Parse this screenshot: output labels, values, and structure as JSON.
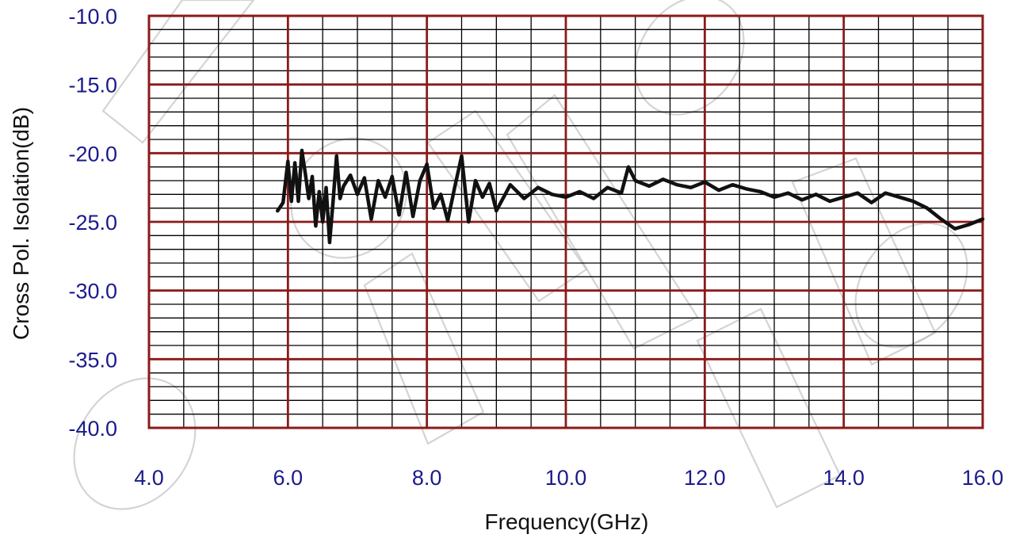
{
  "chart_data": {
    "type": "line",
    "title": "",
    "xlabel": "Frequency(GHz)",
    "ylabel": "Cross Pol. Isolation(dB)",
    "xlim": [
      4.0,
      16.0
    ],
    "ylim": [
      -40.0,
      -10.0
    ],
    "x_ticks": [
      "4.0",
      "6.0",
      "8.0",
      "10.0",
      "12.0",
      "14.0",
      "16.0"
    ],
    "y_ticks": [
      "-10.0",
      "-15.0",
      "-20.0",
      "-25.0",
      "-30.0",
      "-35.0",
      "-40.0"
    ],
    "grid": true,
    "legend": "none",
    "colors": {
      "major_grid": "#8b1a1a",
      "minor_grid": "#000000",
      "series": "#111111",
      "tick_text": "#1a1a8c"
    },
    "series": [
      {
        "x": [
          5.85,
          5.93,
          6.0,
          6.05,
          6.1,
          6.15,
          6.2,
          6.25,
          6.3,
          6.35,
          6.4,
          6.45,
          6.5,
          6.55,
          6.6,
          6.65,
          6.7,
          6.75,
          6.8,
          6.9,
          7.0,
          7.1,
          7.2,
          7.3,
          7.4,
          7.5,
          7.6,
          7.7,
          7.8,
          7.9,
          8.0,
          8.1,
          8.2,
          8.3,
          8.4,
          8.5,
          8.6,
          8.7,
          8.8,
          8.9,
          9.0,
          9.2,
          9.4,
          9.6,
          9.8,
          10.0,
          10.2,
          10.4,
          10.6,
          10.8,
          10.9,
          11.0,
          11.2,
          11.4,
          11.6,
          11.8,
          12.0,
          12.2,
          12.4,
          12.6,
          12.8,
          13.0,
          13.2,
          13.4,
          13.6,
          13.8,
          14.0,
          14.2,
          14.4,
          14.6,
          14.8,
          15.0,
          15.2,
          15.4,
          15.6,
          15.8,
          16.0
        ],
        "y": [
          -24.2,
          -23.6,
          -20.6,
          -23.5,
          -20.7,
          -23.5,
          -19.8,
          -21.5,
          -23.3,
          -21.7,
          -25.3,
          -22.8,
          -25.0,
          -22.5,
          -26.5,
          -23.5,
          -20.2,
          -23.3,
          -22.4,
          -21.6,
          -23.0,
          -21.8,
          -24.8,
          -22.0,
          -23.2,
          -21.7,
          -24.5,
          -21.4,
          -24.6,
          -22.0,
          -20.8,
          -24.0,
          -23.0,
          -24.9,
          -22.5,
          -20.2,
          -25.0,
          -22.0,
          -23.2,
          -22.2,
          -24.2,
          -22.3,
          -23.3,
          -22.5,
          -23.0,
          -23.2,
          -22.8,
          -23.3,
          -22.5,
          -22.9,
          -21.0,
          -22.0,
          -22.4,
          -21.9,
          -22.3,
          -22.5,
          -22.1,
          -22.7,
          -22.3,
          -22.6,
          -22.8,
          -23.2,
          -22.9,
          -23.4,
          -23.0,
          -23.5,
          -23.2,
          -22.9,
          -23.6,
          -22.9,
          -23.2,
          -23.5,
          -24.0,
          -24.8,
          -25.5,
          -25.2,
          -24.8
        ]
      }
    ]
  }
}
